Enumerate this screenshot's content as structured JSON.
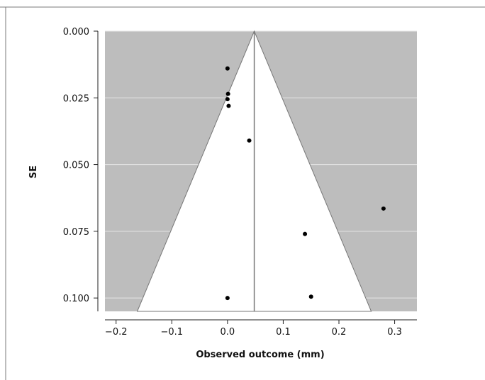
{
  "chart_data": {
    "type": "scatter",
    "subtype": "funnel-plot",
    "xlabel": "Observed outcome (mm)",
    "ylabel": "SE",
    "xlim": [
      -0.22,
      0.34
    ],
    "ylim": [
      0.105,
      0.0
    ],
    "y_axis_inverted": true,
    "xticks": [
      -0.2,
      -0.1,
      0.0,
      0.1,
      0.2,
      0.3
    ],
    "xtick_labels": [
      "−0.2",
      "−0.1",
      "0.0",
      "0.1",
      "0.2",
      "0.3"
    ],
    "yticks": [
      0.0,
      0.025,
      0.05,
      0.075,
      0.1
    ],
    "ytick_labels": [
      "0.000",
      "0.025",
      "0.050",
      "0.075",
      "0.100"
    ],
    "grid": true,
    "pooled_estimate": 0.048,
    "funnel_halfwidth_at_se_0.1": 0.2,
    "colors": {
      "outside_funnel": "#bdbdbd",
      "inside_funnel": "#ffffff",
      "points": "#000000",
      "line": "#777777"
    },
    "points": [
      {
        "x": 0.0,
        "y": 0.014
      },
      {
        "x": 0.001,
        "y": 0.0235
      },
      {
        "x": 0.0,
        "y": 0.0255
      },
      {
        "x": 0.002,
        "y": 0.028
      },
      {
        "x": 0.039,
        "y": 0.041
      },
      {
        "x": 0.28,
        "y": 0.0665
      },
      {
        "x": 0.139,
        "y": 0.076
      },
      {
        "x": 0.0,
        "y": 0.1
      },
      {
        "x": 0.15,
        "y": 0.0995
      }
    ]
  }
}
